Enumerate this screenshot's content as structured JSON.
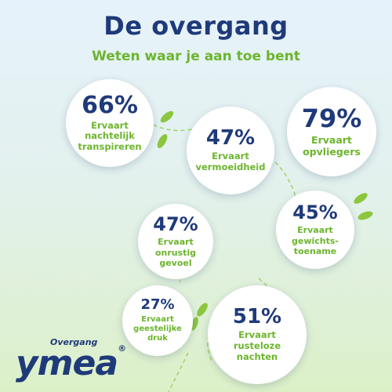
{
  "header": {
    "title": "De overgang",
    "subtitle": "Weten waar je aan toe bent"
  },
  "stats": [
    {
      "percent": "66%",
      "label": "Ervaart\nnachtelijk\ntranspireren",
      "value": 66
    },
    {
      "percent": "47%",
      "label": "Ervaart\nvermoeidheid",
      "value": 47
    },
    {
      "percent": "79%",
      "label": "Ervaart\nopvliegers",
      "value": 79
    },
    {
      "percent": "45%",
      "label": "Ervaart\ngewichts-\ntoename",
      "value": 45
    },
    {
      "percent": "47%",
      "label": "Ervaart\nonrustig\ngevoel",
      "value": 47
    },
    {
      "percent": "27%",
      "label": "Ervaart\ngeestelijke\ndruk",
      "value": 27
    },
    {
      "percent": "51%",
      "label": "Ervaart\nrusteloze\nnachten",
      "value": 51
    }
  ],
  "logo": {
    "small_text": "Overgang",
    "main_text": "ymea",
    "registered": "®"
  },
  "colors": {
    "navy": "#1f3a7a",
    "green": "#6cb52d",
    "leaf": "#8cc63f"
  }
}
